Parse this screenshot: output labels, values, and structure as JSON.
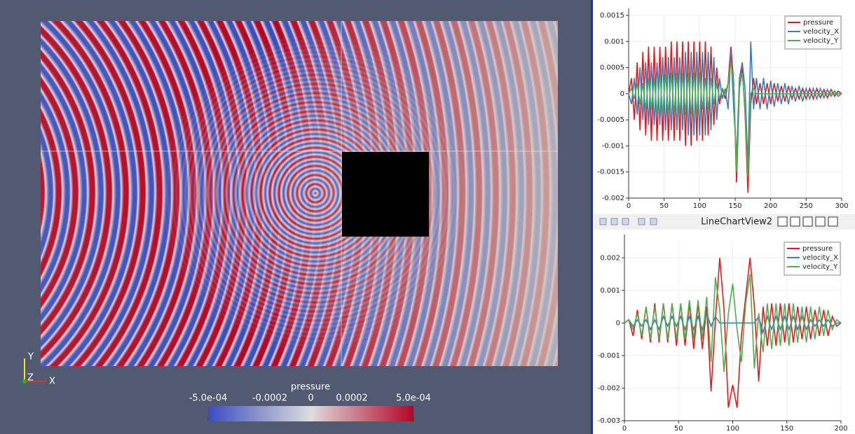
{
  "render_view": {
    "axes_labels": [
      "Y",
      "Z",
      "X"
    ],
    "colorbar": {
      "title": "pressure",
      "range": [
        -0.0005,
        0.0005
      ],
      "colormap": [
        "#3b4cc0",
        "#dddddd",
        "#b40426"
      ],
      "ticks": [
        {
          "value": -0.0005,
          "label": "-5.0e-04"
        },
        -0.0002,
        0,
        0.0002,
        {
          "value": 0.0005,
          "label": "5.0e-04"
        }
      ]
    }
  },
  "chart_view_title": "LineChartView2",
  "chart_data": [
    {
      "type": "line",
      "legend": "top-right",
      "grid": true,
      "x": [
        0,
        4,
        8,
        12,
        16,
        20,
        24,
        28,
        32,
        36,
        40,
        44,
        48,
        52,
        56,
        60,
        64,
        68,
        72,
        76,
        80,
        84,
        88,
        92,
        96,
        100,
        104,
        108,
        112,
        116,
        120,
        124,
        128,
        132,
        136,
        140,
        144,
        148,
        152,
        156,
        160,
        164,
        168,
        172,
        176,
        180,
        185,
        190,
        195,
        200,
        205,
        210,
        215,
        220,
        225,
        230,
        235,
        240,
        245,
        250,
        255,
        260,
        265,
        270,
        275,
        280,
        285,
        290,
        295,
        300
      ],
      "xlim": [
        0,
        300
      ],
      "xticks": [
        0,
        50,
        100,
        150,
        200,
        250,
        300
      ],
      "ylim": [
        -0.002,
        0.0015
      ],
      "yticks": [
        -0.002,
        -0.0015,
        -0.001,
        -0.0005,
        0,
        0.0005,
        0.001,
        0.0015
      ],
      "series": [
        {
          "name": "pressure",
          "color": "#e31a1c",
          "values": [
            0,
            0.0003,
            -0.0005,
            0.0006,
            -0.0007,
            0.0008,
            -0.0008,
            0.0009,
            -0.0009,
            0.0009,
            -0.0009,
            0.0009,
            -0.0009,
            0.0009,
            -0.0009,
            0.001,
            -0.0009,
            0.001,
            -0.0009,
            0.001,
            -0.001,
            0.001,
            -0.001,
            0.001,
            -0.0009,
            0.001,
            -0.0009,
            0.001,
            -0.0008,
            0.0009,
            -0.0006,
            0.0005,
            -0.0002,
            0.0001,
            -0.0001,
            0.0002,
            0.0009,
            0.0002,
            -0.0017,
            0.0001,
            0.0005,
            -0.0004,
            -0.0019,
            -0.0002,
            0.0003,
            -0.0002,
            0.0002,
            -0.0002,
            0.0002,
            -0.0002,
            0.0002,
            -0.00015,
            0.00015,
            -0.00015,
            0.00015,
            -0.0001,
            0.0001,
            -0.0001,
            0.0001,
            -0.0001,
            0.0001,
            -0.0001,
            0.0001,
            -8e-05,
            8e-05,
            -8e-05,
            8e-05,
            -5e-05,
            5e-05,
            0
          ]
        },
        {
          "name": "velocity_X",
          "color": "#3a7cc4",
          "values": [
            0,
            -0.0002,
            0.0003,
            -0.0004,
            0.0005,
            -0.0005,
            0.0006,
            -0.0006,
            0.0006,
            -0.0006,
            0.0006,
            -0.0006,
            0.0007,
            -0.0007,
            0.0007,
            -0.0007,
            0.0007,
            -0.0007,
            0.0007,
            -0.0007,
            0.0008,
            -0.0008,
            0.0008,
            -0.0008,
            0.0008,
            -0.0008,
            0.0008,
            -0.0008,
            0.0008,
            -0.0007,
            0.0007,
            -0.0005,
            0.0003,
            -0.0001,
            0.0001,
            -0.0003,
            0.0008,
            -0.0003,
            -0.0012,
            0.0003,
            0.0006,
            0.0001,
            -0.0014,
            0.001,
            -0.0003,
            0.0003,
            -0.0003,
            0.0003,
            -0.0003,
            0.00025,
            -0.00025,
            0.0002,
            -0.0002,
            0.0002,
            -0.0002,
            0.00015,
            -0.00015,
            0.00015,
            -0.00015,
            0.0001,
            -0.0001,
            0.0001,
            -0.0001,
            0.0001,
            -8e-05,
            8e-05,
            -5e-05,
            5e-05,
            -5e-05,
            0
          ]
        },
        {
          "name": "velocity_Y",
          "color": "#4daf4a",
          "values": [
            0,
            0.0001,
            -0.0001,
            0.0002,
            -0.0002,
            0.0002,
            -0.0003,
            0.0003,
            -0.0003,
            0.0003,
            -0.0004,
            0.0004,
            -0.0004,
            0.0004,
            -0.0004,
            0.0004,
            -0.0004,
            0.0004,
            -0.0004,
            0.0004,
            -0.0004,
            0.0004,
            -0.0004,
            0.0004,
            -0.0004,
            0.0004,
            -0.0003,
            0.0003,
            -0.0003,
            0.0003,
            -0.0002,
            0.0002,
            -0.0001,
            0.0001,
            0,
            0.0002,
            0.0006,
            0.0002,
            -0.0015,
            0.0001,
            0.0004,
            -0.0003,
            -0.0016,
            0,
            0.0001,
            0,
            0,
            0,
            0,
            0,
            0,
            0,
            0,
            0,
            0,
            0,
            0,
            0,
            0,
            0,
            0,
            0,
            0,
            0,
            0,
            0,
            0,
            0,
            0,
            0
          ]
        }
      ]
    },
    {
      "type": "line",
      "legend": "top-right",
      "grid": true,
      "x": [
        0,
        4,
        8,
        12,
        16,
        20,
        24,
        28,
        32,
        36,
        40,
        44,
        48,
        52,
        56,
        60,
        64,
        68,
        72,
        76,
        80,
        84,
        88,
        92,
        96,
        100,
        104,
        108,
        112,
        116,
        120,
        124,
        128,
        132,
        136,
        140,
        144,
        148,
        152,
        156,
        160,
        164,
        168,
        172,
        176,
        180,
        184,
        188,
        192,
        196,
        200
      ],
      "xlim": [
        0,
        200
      ],
      "xticks": [
        0,
        50,
        100,
        150,
        200
      ],
      "ylim": [
        -0.003,
        0.0025
      ],
      "yticks": [
        -0.003,
        -0.002,
        -0.001,
        0,
        0.001,
        0.002
      ],
      "series": [
        {
          "name": "pressure",
          "color": "#e31a1c",
          "values": [
            0,
            0.0001,
            -0.0004,
            0.0004,
            -0.0005,
            0.0005,
            -0.0006,
            0.0006,
            -0.0006,
            0.0006,
            -0.0006,
            0.0006,
            -0.0007,
            0.0006,
            -0.0007,
            0.0006,
            -0.0008,
            0.0006,
            -0.0008,
            0.0005,
            -0.0021,
            0.0001,
            0.002,
            0.0004,
            -0.0026,
            -0.0019,
            -0.0026,
            -0.0004,
            0.0008,
            0.002,
            0.0005,
            -0.0018,
            0.0005,
            -0.0007,
            0.0006,
            -0.0007,
            0.0006,
            -0.0006,
            0.0006,
            -0.0006,
            0.0005,
            -0.0005,
            0.0005,
            -0.0005,
            0.0004,
            -0.0004,
            0.0004,
            -0.0004,
            0.0002,
            -0.0001,
            0
          ]
        },
        {
          "name": "velocity_X",
          "color": "#3a7cc4",
          "values": [
            0,
            0.0001,
            -0.0001,
            0.0001,
            -0.0001,
            0.0001,
            -0.0002,
            0.0001,
            -0.0002,
            0.0002,
            -0.0001,
            0.0002,
            -0.0001,
            0.0002,
            -0.0002,
            0.0002,
            -0.0002,
            0.0002,
            -0.0002,
            0.0003,
            -0.0001,
            0.0002,
            0,
            0,
            0,
            0,
            0,
            0,
            0,
            0,
            0,
            0.0002,
            -0.0003,
            0.0002,
            -0.0002,
            0.0002,
            -0.0002,
            0.0002,
            -0.0002,
            0.0002,
            -0.0002,
            0.0002,
            -0.0002,
            0.0001,
            -0.0001,
            0.0001,
            -0.0001,
            0.0001,
            -0.0001,
            0,
            0
          ]
        },
        {
          "name": "velocity_Y",
          "color": "#4daf4a",
          "values": [
            0,
            0.0001,
            -0.0002,
            0.0003,
            -0.0004,
            0.0005,
            -0.0005,
            0.0005,
            -0.0005,
            0.0006,
            -0.0005,
            0.0006,
            -0.0005,
            0.0006,
            -0.0005,
            0.0007,
            -0.0005,
            0.0007,
            -0.0005,
            0.0008,
            -0.0012,
            0.0014,
            0.0004,
            -0.0015,
            0.0003,
            0.0012,
            -0.0002,
            -0.0012,
            0.0006,
            0.0015,
            -0.0014,
            0.0003,
            -0.0009,
            0.0006,
            -0.0008,
            0.0006,
            -0.0007,
            0.0006,
            -0.0007,
            0.0006,
            -0.0006,
            0.0005,
            -0.0006,
            0.0005,
            -0.0005,
            0.0005,
            -0.0004,
            0.0004,
            -0.0002,
            0.0001,
            0
          ]
        }
      ]
    }
  ]
}
